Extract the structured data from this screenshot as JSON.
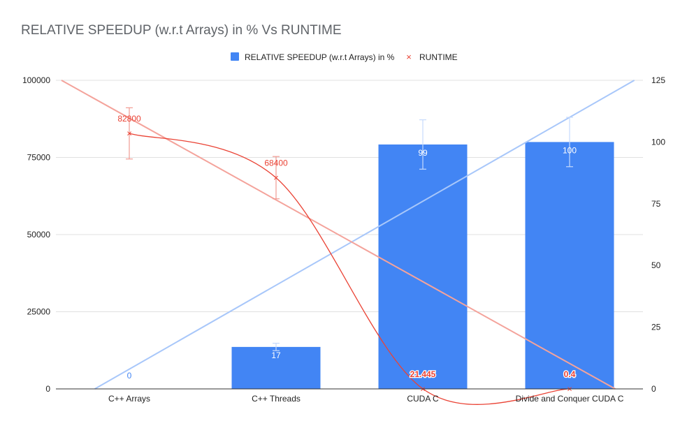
{
  "colors": {
    "bar": "#4285f4",
    "runtime": "#ea4335",
    "bar_trend": "#a8c7fa",
    "runtime_trend": "#f4a39b",
    "grid": "#e0e0e0",
    "axis": "#333333",
    "title": "#5f6368",
    "text": "#222222",
    "bar_error": "#c6dafc",
    "runtime_error": "#f19b93"
  },
  "chart_data": {
    "type": "bar",
    "title": "RELATIVE SPEEDUP (w.r.t Arrays) in % Vs RUNTIME",
    "categories": [
      "C++ Arrays",
      "C++ Threads",
      "CUDA C",
      "Divide and Conquer CUDA C"
    ],
    "legend_position": "top",
    "grid": true,
    "y_left": {
      "ylim": [
        0,
        100000
      ],
      "ticks": [
        "0",
        "25000",
        "50000",
        "75000",
        "100000"
      ]
    },
    "y_right": {
      "ylim": [
        0,
        125
      ],
      "ticks": [
        "0",
        "25",
        "50",
        "75",
        "100",
        "125"
      ]
    },
    "series": [
      {
        "name": "RELATIVE SPEEDUP (w.r.t Arrays) in %",
        "type": "bar",
        "axis": "right",
        "values": [
          0,
          17,
          99,
          100
        ],
        "labels": [
          "0",
          "17",
          "99",
          "100"
        ],
        "error_low": [
          0,
          15.5,
          89,
          90
        ],
        "error_high": [
          0,
          18.5,
          109,
          110
        ],
        "trendline": {
          "type": "linear",
          "start": -9,
          "end": 127
        }
      },
      {
        "name": "RUNTIME",
        "type": "scatter",
        "axis": "left",
        "values": [
          82800,
          68400,
          21.445,
          0.4
        ],
        "labels": [
          "82800",
          "68400",
          "21.445",
          "0.4"
        ],
        "error_low": [
          74500,
          61600,
          0,
          0
        ],
        "error_high": [
          91100,
          75300,
          0,
          0
        ],
        "trendline": {
          "type": "linear",
          "start": 101000,
          "end": -5000
        }
      }
    ]
  }
}
